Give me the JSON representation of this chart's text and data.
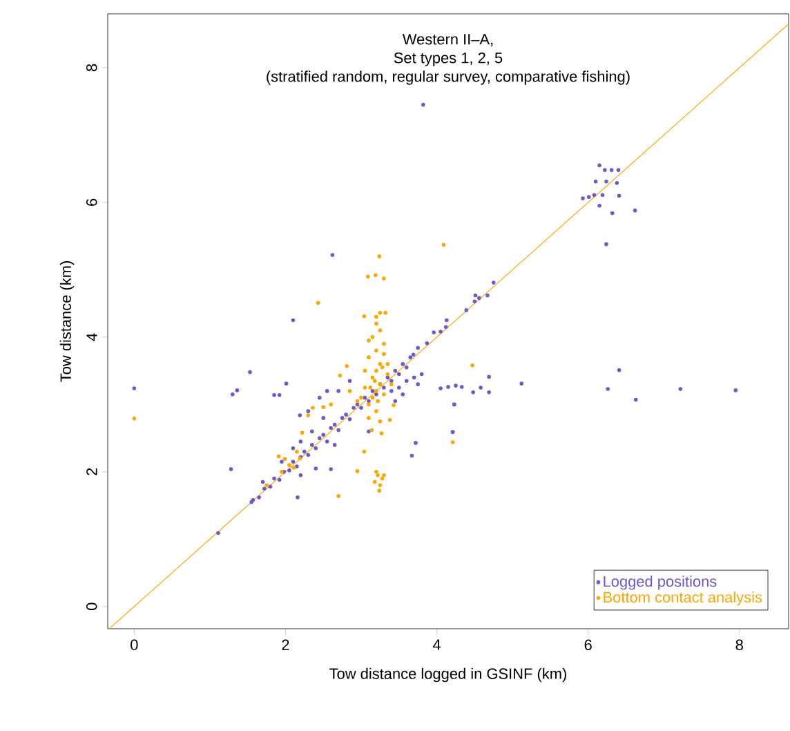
{
  "chart_data": {
    "type": "scatter",
    "title": "Western II–A,",
    "subtitle": "Set types 1, 2, 5",
    "annotations": [
      "(stratified random, regular survey, comparative fishing)"
    ],
    "xlabel": "Tow distance logged in GSINF (km)",
    "ylabel": "Tow distance (km)",
    "xlim": [
      -0.35,
      8.65
    ],
    "ylim": [
      -0.33,
      8.8
    ],
    "xticks": [
      0,
      2,
      4,
      6,
      8
    ],
    "yticks": [
      0,
      2,
      4,
      6,
      8
    ],
    "grid": false,
    "legend": "bottom right",
    "series": [
      {
        "name": "Logged positions",
        "color": "#6a5acd",
        "marker": "circle",
        "x": [
          0,
          3.82,
          2.62,
          2.1,
          1.53,
          1.3,
          1.36,
          1.28,
          1.11,
          1.7,
          1.57,
          2.16,
          2.6,
          3.67,
          3.72,
          4.21,
          4.23,
          4.05,
          4.15,
          4.25,
          4.33,
          2.01,
          1.85,
          1.92,
          2.19,
          6.15,
          6.22,
          6.31,
          6.4,
          6.1,
          6.24,
          6.38,
          5.93,
          6.01,
          6.08,
          6.19,
          6.41,
          6.15,
          6.32,
          6.62,
          6.24,
          4.75,
          4.67,
          4.51,
          4.56,
          4.5,
          4.39,
          4.13,
          4.12,
          4.05,
          3.96,
          3.87,
          3.75,
          3.69,
          6.41,
          6.26,
          6.63,
          7.22,
          7.95,
          5.12,
          4.69,
          4.69,
          4.58,
          4.48,
          4.23,
          4.21,
          3.72,
          1.55,
          1.65,
          1.72,
          1.8,
          1.85,
          1.92,
          1.98,
          2.05,
          2.1,
          2.15,
          2.2,
          2.25,
          2.3,
          2.35,
          2.4,
          2.45,
          2.5,
          2.55,
          2.6,
          2.65,
          2.7,
          2.75,
          2.8,
          2.85,
          2.9,
          2.95,
          3.0,
          3.05,
          3.1,
          3.15,
          3.2,
          3.25,
          3.3,
          3.35,
          3.4,
          3.45,
          3.5,
          3.55,
          3.6,
          3.65,
          3.5,
          3.6,
          3.55,
          3.45,
          3.4,
          3.7,
          3.75,
          3.8,
          2.2,
          2.35,
          2.5,
          2.45,
          2.3,
          2.1,
          1.95,
          2.7,
          2.55,
          2.85,
          2.4,
          2.65,
          3.1,
          2.2
        ],
        "values": [
          3.24,
          7.45,
          5.22,
          4.25,
          3.48,
          3.15,
          3.21,
          2.04,
          1.09,
          1.85,
          1.58,
          1.62,
          2.04,
          2.24,
          2.43,
          2.59,
          3.0,
          3.24,
          3.26,
          3.28,
          3.26,
          3.31,
          3.14,
          3.14,
          2.84,
          6.55,
          6.48,
          6.48,
          6.48,
          6.31,
          6.31,
          6.29,
          6.06,
          6.08,
          6.11,
          6.11,
          6.1,
          5.95,
          5.84,
          5.88,
          5.38,
          4.81,
          4.62,
          4.62,
          4.58,
          4.53,
          4.4,
          4.25,
          4.15,
          4.08,
          4.07,
          3.91,
          3.84,
          3.74,
          3.51,
          3.23,
          3.07,
          3.23,
          3.21,
          3.31,
          3.41,
          3.18,
          3.25,
          3.18,
          3.0,
          2.59,
          2.43,
          1.55,
          1.62,
          1.75,
          1.78,
          1.9,
          1.88,
          2.0,
          2.02,
          2.15,
          2.08,
          2.22,
          2.3,
          2.25,
          2.4,
          2.35,
          2.5,
          2.55,
          2.45,
          2.65,
          2.7,
          2.62,
          2.8,
          2.85,
          2.78,
          2.95,
          3.0,
          2.95,
          3.1,
          3.05,
          3.2,
          3.15,
          3.3,
          3.25,
          3.4,
          3.35,
          3.5,
          3.45,
          3.6,
          3.55,
          3.7,
          3.25,
          3.35,
          3.15,
          3.05,
          3.2,
          3.4,
          3.3,
          3.45,
          2.45,
          2.6,
          2.8,
          3.1,
          2.9,
          2.35,
          2.15,
          3.2,
          3.2,
          3.35,
          2.05,
          2.4,
          2.6,
          1.95
        ]
      },
      {
        "name": "Bottom contact analysis",
        "color": "#ffa500",
        "marker": "circle",
        "x": [
          0,
          4.09,
          3.24,
          3.09,
          3.19,
          3.3,
          2.43,
          3.04,
          3.25,
          3.32,
          2.7,
          2.95,
          3.04,
          3.14,
          3.27,
          3.38,
          3.43,
          4.21,
          4.47,
          3.1,
          3.15,
          3.2,
          3.25,
          3.15,
          3.2,
          3.25,
          3.1,
          3.2,
          3.3,
          3.15,
          3.25,
          3.2,
          3.3,
          3.05,
          3.35,
          3.3,
          3.2,
          3.1,
          3.25,
          3.05,
          3.35,
          3.4,
          3.0,
          3.18,
          3.22,
          3.28,
          3.12,
          3.2,
          3.1,
          1.75,
          1.91,
          1.99,
          2.11,
          2.19,
          2.22,
          2.3,
          2.36,
          2.5,
          2.72,
          2.81,
          2.6,
          2.85,
          2.95,
          2.05,
          2.15,
          1.95,
          3.18,
          3.22,
          3.28,
          3.25,
          3.2,
          3.3,
          3.24
        ],
        "values": [
          2.79,
          5.37,
          5.2,
          4.9,
          4.92,
          4.87,
          4.51,
          4.31,
          4.36,
          4.36,
          1.64,
          2.01,
          2.3,
          2.62,
          2.57,
          2.77,
          2.99,
          2.44,
          3.58,
          3.0,
          3.1,
          3.2,
          3.3,
          3.4,
          3.5,
          3.6,
          3.7,
          3.8,
          3.9,
          4.0,
          4.1,
          4.2,
          3.75,
          3.25,
          3.45,
          3.15,
          2.9,
          2.8,
          2.75,
          3.5,
          3.6,
          3.3,
          3.1,
          3.35,
          3.05,
          3.55,
          3.25,
          4.3,
          3.95,
          1.8,
          2.23,
          2.19,
          2.06,
          2.2,
          2.58,
          2.84,
          2.95,
          2.96,
          3.43,
          3.57,
          3.0,
          3.2,
          3.05,
          2.1,
          2.3,
          2.0,
          1.85,
          1.95,
          1.9,
          1.8,
          2.0,
          1.95,
          1.72
        ]
      },
      {
        "type": "line",
        "marker": "none",
        "color": "#ffa500",
        "x": [
          -0.33,
          8.65
        ],
        "values": [
          -0.33,
          8.65
        ]
      }
    ]
  }
}
